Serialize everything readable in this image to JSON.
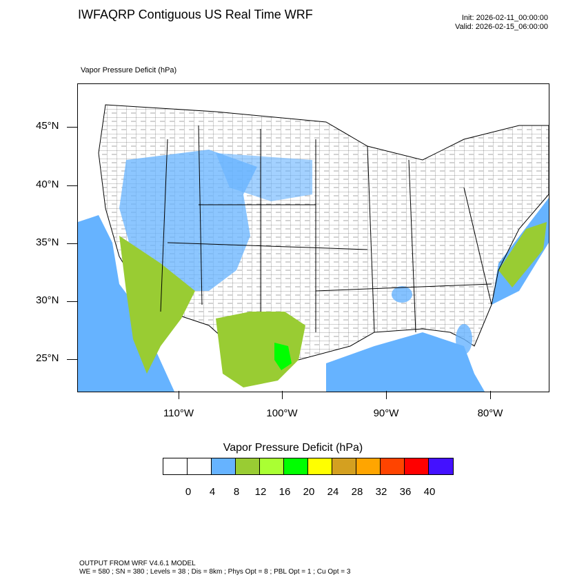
{
  "title": "IWFAQRP Contiguous US Real Time WRF",
  "init": "Init: 2026-02-11_00:00:00",
  "valid": "Valid: 2026-02-15_06:00:00",
  "field_label": "Vapor Pressure Deficit   (hPa)",
  "lat_labels": [
    "45°N",
    "40°N",
    "35°N",
    "30°N",
    "25°N"
  ],
  "lon_labels": [
    "110°W",
    "100°W",
    "90°W",
    "80°W"
  ],
  "colorbar": {
    "title": "Vapor Pressure Deficit  (hPa)",
    "labels": [
      "0",
      "4",
      "8",
      "12",
      "16",
      "20",
      "24",
      "28",
      "32",
      "36",
      "40"
    ],
    "colors": [
      "#ffffff",
      "#ffffff",
      "#66b3ff",
      "#99cc33",
      "#aaff33",
      "#00ff00",
      "#ffff00",
      "#d4a020",
      "#ffa500",
      "#ff4400",
      "#ff0000",
      "#4411ff"
    ]
  },
  "footer": {
    "line1": "OUTPUT FROM WRF V4.6.1 MODEL",
    "line2": "WE = 580 ; SN = 380 ; Levels = 38 ; Dis = 8km ; Phys Opt = 8 ; PBL Opt = 1 ; Cu Opt = 3"
  }
}
